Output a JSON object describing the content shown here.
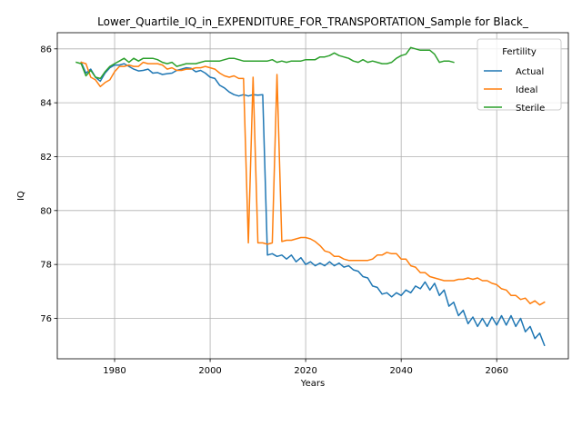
{
  "chart_data": {
    "type": "line",
    "title": "Lower_Quartile_IQ_in_EXPENDITURE_FOR_TRANSPORTATION_Sample for Black_",
    "xlabel": "Years",
    "ylabel": "IQ",
    "xlim": [
      1968,
      2075
    ],
    "ylim": [
      74.5,
      86.6
    ],
    "x_ticks": [
      1980,
      2000,
      2020,
      2040,
      2060
    ],
    "y_ticks": [
      76,
      78,
      80,
      82,
      84,
      86
    ],
    "grid": true,
    "legend": {
      "title": "Fertility",
      "position": "top-right"
    },
    "series": [
      {
        "name": "Actual",
        "color": "#1f77b4",
        "x": [
          1973,
          1974,
          1975,
          1976,
          1977,
          1978,
          1979,
          1980,
          1981,
          1982,
          1983,
          1984,
          1985,
          1986,
          1987,
          1988,
          1989,
          1990,
          1991,
          1992,
          1993,
          1994,
          1995,
          1996,
          1997,
          1998,
          1999,
          2000,
          2001,
          2002,
          2003,
          2004,
          2005,
          2006,
          2007,
          2008,
          2009,
          2010,
          2011,
          2012,
          2013,
          2014,
          2015,
          2016,
          2017,
          2018,
          2019,
          2020,
          2021,
          2022,
          2023,
          2024,
          2025,
          2026,
          2027,
          2028,
          2029,
          2030,
          2031,
          2032,
          2033,
          2034,
          2035,
          2036,
          2037,
          2038,
          2039,
          2040,
          2041,
          2042,
          2043,
          2044,
          2045,
          2046,
          2047,
          2048,
          2049,
          2050,
          2051,
          2052,
          2053,
          2054,
          2055,
          2056,
          2057,
          2058,
          2059,
          2060,
          2061,
          2062,
          2063,
          2064,
          2065,
          2066,
          2067,
          2068,
          2069,
          2070
        ],
        "values": [
          85.5,
          85.1,
          85.25,
          84.95,
          84.8,
          85.1,
          85.3,
          85.4,
          85.4,
          85.45,
          85.35,
          85.25,
          85.18,
          85.2,
          85.25,
          85.1,
          85.12,
          85.05,
          85.08,
          85.1,
          85.2,
          85.25,
          85.3,
          85.28,
          85.15,
          85.2,
          85.1,
          84.95,
          84.9,
          84.65,
          84.55,
          84.4,
          84.3,
          84.25,
          84.3,
          84.25,
          84.3,
          84.28,
          84.3,
          78.35,
          78.4,
          78.3,
          78.35,
          78.2,
          78.35,
          78.1,
          78.25,
          78.0,
          78.1,
          77.95,
          78.05,
          77.95,
          78.1,
          77.95,
          78.05,
          77.9,
          77.95,
          77.8,
          77.75,
          77.55,
          77.5,
          77.2,
          77.15,
          76.9,
          76.95,
          76.8,
          76.95,
          76.85,
          77.05,
          76.95,
          77.2,
          77.1,
          77.35,
          77.05,
          77.3,
          76.85,
          77.05,
          76.45,
          76.6,
          76.1,
          76.3,
          75.8,
          76.05,
          75.7,
          76.0,
          75.7,
          76.05,
          75.75,
          76.1,
          75.75,
          76.1,
          75.7,
          76.0,
          75.5,
          75.7,
          75.25,
          75.45,
          75.0
        ]
      },
      {
        "name": "Ideal",
        "color": "#ff7f0e",
        "x": [
          1973,
          1974,
          1975,
          1976,
          1977,
          1978,
          1979,
          1980,
          1981,
          1982,
          1983,
          1984,
          1985,
          1986,
          1987,
          1988,
          1989,
          1990,
          1991,
          1992,
          1993,
          1994,
          1995,
          1996,
          1997,
          1998,
          1999,
          2000,
          2001,
          2002,
          2003,
          2004,
          2005,
          2006,
          2007,
          2008,
          2009,
          2010,
          2011,
          2012,
          2013,
          2014,
          2015,
          2016,
          2017,
          2018,
          2019,
          2020,
          2021,
          2022,
          2023,
          2024,
          2025,
          2026,
          2027,
          2028,
          2029,
          2030,
          2031,
          2032,
          2033,
          2034,
          2035,
          2036,
          2037,
          2038,
          2039,
          2040,
          2041,
          2042,
          2043,
          2044,
          2045,
          2046,
          2047,
          2048,
          2049,
          2050,
          2051,
          2052,
          2053,
          2054,
          2055,
          2056,
          2057,
          2058,
          2059,
          2060,
          2061,
          2062,
          2063,
          2064,
          2065,
          2066,
          2067,
          2068,
          2069,
          2070
        ],
        "values": [
          85.5,
          85.45,
          84.95,
          84.85,
          84.6,
          84.75,
          84.85,
          85.15,
          85.35,
          85.35,
          85.4,
          85.35,
          85.35,
          85.5,
          85.45,
          85.45,
          85.45,
          85.4,
          85.25,
          85.3,
          85.2,
          85.2,
          85.25,
          85.25,
          85.3,
          85.3,
          85.35,
          85.3,
          85.25,
          85.1,
          85.0,
          84.95,
          85.0,
          84.9,
          84.9,
          78.8,
          84.95,
          78.8,
          78.8,
          78.75,
          78.8,
          85.05,
          78.85,
          78.9,
          78.9,
          78.95,
          79.0,
          79.0,
          78.95,
          78.85,
          78.7,
          78.5,
          78.45,
          78.3,
          78.3,
          78.2,
          78.15,
          78.15,
          78.15,
          78.15,
          78.15,
          78.2,
          78.35,
          78.35,
          78.45,
          78.4,
          78.4,
          78.2,
          78.2,
          77.95,
          77.9,
          77.7,
          77.7,
          77.55,
          77.5,
          77.45,
          77.4,
          77.4,
          77.4,
          77.45,
          77.45,
          77.5,
          77.45,
          77.5,
          77.4,
          77.4,
          77.3,
          77.25,
          77.1,
          77.05,
          76.85,
          76.85,
          76.7,
          76.75,
          76.55,
          76.65,
          76.5,
          76.6
        ]
      },
      {
        "name": "Sterile",
        "color": "#2ca02c",
        "x": [
          1972,
          1973,
          1974,
          1975,
          1976,
          1977,
          1978,
          1979,
          1980,
          1981,
          1982,
          1983,
          1984,
          1985,
          1986,
          1987,
          1988,
          1989,
          1990,
          1991,
          1992,
          1993,
          1994,
          1995,
          1996,
          1997,
          1998,
          1999,
          2000,
          2001,
          2002,
          2003,
          2004,
          2005,
          2006,
          2007,
          2008,
          2009,
          2010,
          2011,
          2012,
          2013,
          2014,
          2015,
          2016,
          2017,
          2018,
          2019,
          2020,
          2021,
          2022,
          2023,
          2024,
          2025,
          2026,
          2027,
          2028,
          2029,
          2030,
          2031,
          2032,
          2033,
          2034,
          2035,
          2036,
          2037,
          2038,
          2039,
          2040,
          2041,
          2042,
          2043,
          2044,
          2045,
          2046,
          2047,
          2048,
          2049,
          2050,
          2051
        ],
        "values": [
          85.5,
          85.45,
          85.0,
          85.2,
          84.95,
          84.9,
          85.15,
          85.35,
          85.45,
          85.55,
          85.65,
          85.5,
          85.65,
          85.55,
          85.65,
          85.65,
          85.65,
          85.6,
          85.5,
          85.45,
          85.5,
          85.35,
          85.4,
          85.45,
          85.45,
          85.45,
          85.5,
          85.55,
          85.55,
          85.55,
          85.55,
          85.6,
          85.65,
          85.65,
          85.6,
          85.55,
          85.55,
          85.55,
          85.55,
          85.55,
          85.55,
          85.6,
          85.5,
          85.55,
          85.5,
          85.55,
          85.55,
          85.55,
          85.6,
          85.6,
          85.6,
          85.7,
          85.7,
          85.75,
          85.85,
          85.75,
          85.7,
          85.65,
          85.55,
          85.5,
          85.6,
          85.5,
          85.55,
          85.5,
          85.45,
          85.45,
          85.5,
          85.65,
          85.75,
          85.8,
          86.05,
          86.0,
          85.95,
          85.95,
          85.95,
          85.8,
          85.5,
          85.55,
          85.55,
          85.5
        ]
      }
    ]
  }
}
